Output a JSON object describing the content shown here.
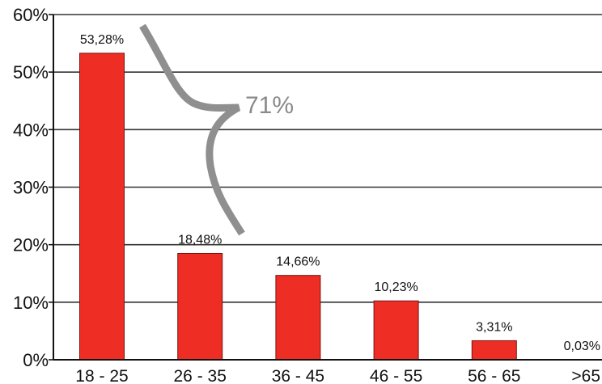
{
  "chart_data": {
    "type": "bar",
    "categories": [
      "18 - 25",
      "26 - 35",
      "36 - 45",
      "46 - 55",
      "56 - 65",
      ">65"
    ],
    "values": [
      53.28,
      18.48,
      14.66,
      10.23,
      3.31,
      0.03
    ],
    "data_labels": [
      "53,28%",
      "18,48%",
      "14,66%",
      "10,23%",
      "3,31%",
      "0,03%"
    ],
    "ylim": [
      0,
      60
    ],
    "y_ticks": [
      0,
      10,
      20,
      30,
      40,
      50,
      60
    ],
    "y_tick_labels": [
      "0%",
      "10%",
      "20%",
      "30%",
      "40%",
      "50%",
      "60%"
    ],
    "grid": true,
    "colors": {
      "bar": "#ee2d24",
      "bar_edge": "#7a1410",
      "grid": "#333333",
      "brace": "#8f8f8f"
    },
    "annotation": {
      "text": "71%",
      "spans": [
        "18 - 25",
        "26 - 35"
      ]
    }
  }
}
